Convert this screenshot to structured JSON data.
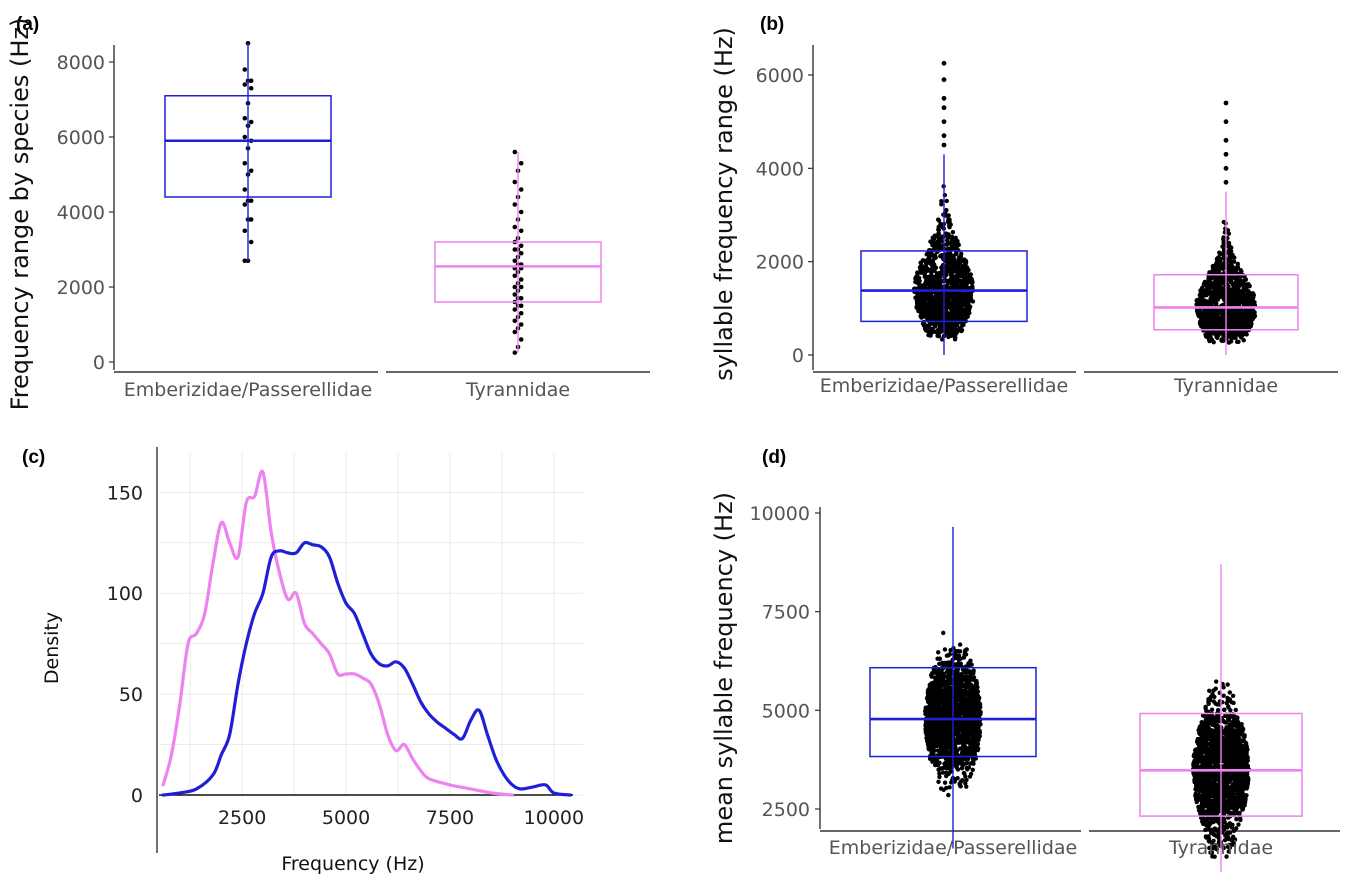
{
  "panels": {
    "a": {
      "label": "(a)"
    },
    "b": {
      "label": "(b)"
    },
    "c": {
      "label": "(c)"
    },
    "d": {
      "label": "(d)"
    }
  },
  "colors": {
    "emberizidae": "#1f1fd6",
    "tyrannidae": "#ee82ee",
    "points": "#000000"
  },
  "chart_data": [
    {
      "panel": "a",
      "type": "box",
      "ylabel": "Frequency range by species (Hz)",
      "xlabel": "",
      "ylim": [
        0,
        8500
      ],
      "yticks": [
        0,
        2000,
        4000,
        6000,
        8000
      ],
      "categories": [
        "Emberizidae/Passerellidae",
        "Tyrannidae"
      ],
      "boxes": [
        {
          "name": "Emberizidae/Passerellidae",
          "q1": 4400,
          "median": 5900,
          "q3": 7100,
          "min": 2700,
          "max": 8500,
          "points": [
            2700,
            2700,
            3200,
            3500,
            3800,
            3800,
            4200,
            4300,
            4300,
            4600,
            5000,
            5100,
            5300,
            5700,
            5900,
            6000,
            6300,
            6400,
            6500,
            6900,
            7300,
            7400,
            7500,
            7500,
            7800,
            8500
          ]
        },
        {
          "name": "Tyrannidae",
          "q1": 1600,
          "median": 2550,
          "q3": 3200,
          "min": 250,
          "max": 5600,
          "points": [
            250,
            400,
            600,
            800,
            900,
            1000,
            1100,
            1200,
            1300,
            1400,
            1500,
            1500,
            1600,
            1700,
            1700,
            1800,
            1900,
            2000,
            2000,
            2100,
            2200,
            2300,
            2400,
            2500,
            2500,
            2600,
            2600,
            2700,
            2800,
            2900,
            3000,
            3000,
            3100,
            3200,
            3300,
            3500,
            3600,
            3800,
            4000,
            4200,
            4400,
            4600,
            4800,
            5100,
            5300,
            5600
          ]
        }
      ]
    },
    {
      "panel": "b",
      "type": "box",
      "ylabel": "syllable frequency range (Hz)",
      "xlabel": "",
      "ylim": [
        0,
        6300
      ],
      "yticks": [
        0,
        2000,
        4000,
        6000
      ],
      "categories": [
        "Emberizidae/Passerellidae",
        "Tyrannidae"
      ],
      "boxes": [
        {
          "name": "Emberizidae/Passerellidae",
          "q1": 720,
          "median": 1380,
          "q3": 2230,
          "min": 0,
          "max": 4300,
          "outliers": [
            4500,
            4700,
            5000,
            5300,
            5500,
            5900,
            6250
          ]
        },
        {
          "name": "Tyrannidae",
          "q1": 540,
          "median": 1020,
          "q3": 1720,
          "min": 0,
          "max": 3500,
          "outliers": [
            3700,
            4000,
            4300,
            4600,
            5000,
            5400
          ]
        }
      ]
    },
    {
      "panel": "c",
      "type": "line",
      "xlabel": "Frequency (Hz)",
      "ylabel": "Density",
      "xlim": [
        500,
        10700
      ],
      "ylim": [
        0,
        170
      ],
      "xticks": [
        2500,
        5000,
        7500,
        10000
      ],
      "yticks": [
        0,
        50,
        100,
        150
      ],
      "series": [
        {
          "color_key": "tyrannidae",
          "x": [
            600,
            800,
            1000,
            1200,
            1400,
            1600,
            1800,
            2000,
            2200,
            2400,
            2600,
            2800,
            3000,
            3200,
            3400,
            3600,
            3800,
            4000,
            4200,
            4400,
            4600,
            4800,
            5000,
            5200,
            5400,
            5600,
            5800,
            6000,
            6200,
            6400,
            6600,
            6800,
            7000,
            7500,
            8000,
            8500,
            9000
          ],
          "y": [
            5,
            20,
            45,
            75,
            80,
            90,
            115,
            135,
            125,
            118,
            145,
            148,
            160,
            130,
            110,
            97,
            100,
            85,
            80,
            75,
            70,
            60,
            60,
            60,
            58,
            55,
            45,
            30,
            22,
            25,
            18,
            12,
            8,
            5,
            3,
            1,
            0
          ]
        },
        {
          "color_key": "emberizidae",
          "x": [
            600,
            1000,
            1400,
            1800,
            2000,
            2200,
            2400,
            2600,
            2800,
            3000,
            3200,
            3400,
            3600,
            3800,
            4000,
            4200,
            4400,
            4600,
            4800,
            5000,
            5200,
            5400,
            5600,
            5800,
            6000,
            6200,
            6400,
            6600,
            6800,
            7000,
            7200,
            7400,
            7600,
            7800,
            8000,
            8200,
            8400,
            8600,
            8800,
            9000,
            9200,
            9500,
            9800,
            10000,
            10400
          ],
          "y": [
            0,
            1,
            3,
            10,
            20,
            30,
            55,
            75,
            90,
            100,
            118,
            121,
            120,
            120,
            125,
            124,
            123,
            118,
            105,
            95,
            90,
            80,
            70,
            65,
            64,
            66,
            63,
            55,
            46,
            40,
            36,
            33,
            30,
            28,
            37,
            42,
            30,
            18,
            10,
            5,
            3,
            4,
            5,
            1,
            0
          ]
        }
      ]
    },
    {
      "panel": "d",
      "type": "box",
      "ylabel": "mean syllable frequency (Hz)",
      "xlabel": "",
      "ylim": [
        900,
        10000
      ],
      "yticks": [
        2500,
        5000,
        7500,
        10000
      ],
      "categories": [
        "Emberizidae/Passerellidae",
        "Tyrannidae"
      ],
      "boxes": [
        {
          "name": "Emberizidae/Passerellidae",
          "q1": 3830,
          "median": 4780,
          "q3": 6080,
          "min": 1500,
          "max": 9650
        },
        {
          "name": "Tyrannidae",
          "q1": 2320,
          "median": 3480,
          "q3": 4920,
          "min": 900,
          "max": 8700
        }
      ]
    }
  ]
}
